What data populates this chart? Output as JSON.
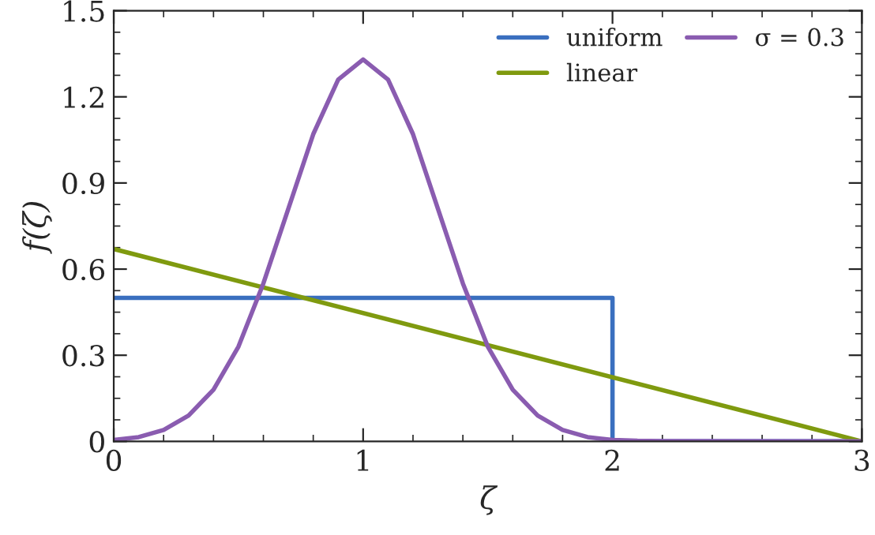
{
  "chart_data": {
    "type": "line",
    "xlabel": "ζ",
    "ylabel": "f(ζ)",
    "xlim": [
      0,
      3
    ],
    "ylim": [
      0,
      1.5
    ],
    "xticks": [
      0,
      1,
      2,
      3
    ],
    "yticks": [
      0,
      {
        "value": 0.3,
        "label": "0.3"
      },
      {
        "value": 0.6,
        "label": "0.6"
      },
      {
        "value": 0.9,
        "label": "0.9"
      },
      {
        "value": 1.2,
        "label": "1.2"
      },
      {
        "value": 1.5,
        "label": "1.5"
      }
    ],
    "grid": false,
    "legend": "top right",
    "marker": "none",
    "line_style": "solid",
    "series": [
      {
        "name": "uniform",
        "color": "#3a6fbf",
        "x": [
          0,
          2,
          2,
          3
        ],
        "values": [
          0.5,
          0.5,
          0,
          0
        ]
      },
      {
        "name": "linear",
        "color": "#7f9a0f",
        "x": [
          0,
          3
        ],
        "values": [
          0.67,
          0
        ]
      },
      {
        "name": "σ = 0.3",
        "color": "#8a5cb0",
        "x": [
          0,
          0.1,
          0.2,
          0.3,
          0.4,
          0.5,
          0.6,
          0.7,
          0.8,
          0.9,
          1.0,
          1.1,
          1.2,
          1.3,
          1.4,
          1.5,
          1.6,
          1.7,
          1.8,
          1.9,
          2.0,
          2.1,
          2.2,
          3.0
        ],
        "values": [
          0.005,
          0.015,
          0.04,
          0.09,
          0.18,
          0.33,
          0.55,
          0.81,
          1.07,
          1.26,
          1.33,
          1.26,
          1.07,
          0.81,
          0.55,
          0.33,
          0.18,
          0.09,
          0.04,
          0.015,
          0.005,
          0.002,
          0.001,
          0
        ]
      }
    ]
  }
}
